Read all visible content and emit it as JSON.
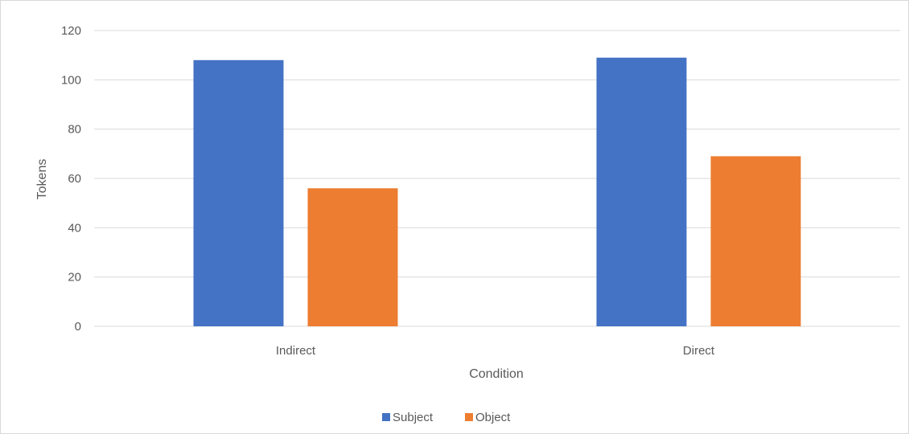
{
  "chart_data": {
    "type": "bar",
    "categories": [
      "Indirect",
      "Direct"
    ],
    "series": [
      {
        "name": "Subject",
        "values": [
          108,
          109
        ],
        "color": "#4472C4"
      },
      {
        "name": "Object",
        "values": [
          56,
          69
        ],
        "color": "#ED7D31"
      }
    ],
    "title": "",
    "xlabel": "Condition",
    "ylabel": "Tokens",
    "ylim": [
      0,
      120
    ],
    "yticks": [
      0,
      20,
      40,
      60,
      80,
      100,
      120
    ],
    "grid": true,
    "legend_position": "bottom"
  }
}
